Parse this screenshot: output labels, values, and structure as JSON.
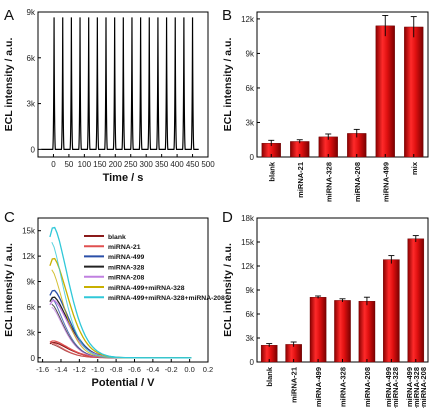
{
  "chart_data": [
    {
      "panel_label": "A",
      "type": "line",
      "xlabel": "Time / s",
      "ylabel": "ECL intensity / a.u.",
      "xlim": [
        -50,
        500
      ],
      "ylim": [
        -500,
        9000
      ],
      "x_ticks": [
        "0",
        "50",
        "100",
        "150",
        "200",
        "250",
        "300",
        "350",
        "400",
        "450",
        "500"
      ],
      "y_ticks": [
        "0",
        "3k",
        "6k",
        "9k"
      ],
      "series": [
        {
          "peak_times": [
            2,
            30,
            58,
            86,
            114,
            142,
            170,
            198,
            226,
            254,
            282,
            310,
            338,
            366,
            394,
            422,
            450
          ],
          "peak_values": [
            8650,
            8650,
            8650,
            8650,
            8650,
            8650,
            8650,
            8650,
            8650,
            8650,
            8650,
            8650,
            8650,
            8650,
            8650,
            8650,
            8650
          ],
          "baseline": 0,
          "color": "#000000"
        }
      ],
      "grid": false
    },
    {
      "panel_label": "B",
      "type": "bar",
      "ylabel": "ECL intensity / a.u.",
      "categories": [
        "blank",
        "miRNA-21",
        "miRNA-328",
        "miRNA-208",
        "miRNA-499",
        "mix"
      ],
      "values": [
        1200,
        1350,
        1750,
        2050,
        11400,
        11300
      ],
      "errors": [
        250,
        150,
        250,
        350,
        900,
        900
      ],
      "ylim": [
        0,
        12600
      ],
      "y_ticks": [
        "0",
        "3k",
        "6k",
        "9k",
        "12k"
      ],
      "bar_color": "#d81414",
      "grid": false
    },
    {
      "panel_label": "C",
      "type": "line",
      "xlabel": "Potential / V",
      "ylabel": "ECL intensity / a.u.",
      "xlim": [
        -1.65,
        0.2
      ],
      "ylim": [
        -500,
        16500
      ],
      "x_ticks": [
        "-1.6",
        "-1.4",
        "-1.2",
        "-1.0",
        "-0.8",
        "-0.6",
        "-0.4",
        "-0.2",
        "0.0",
        "0.2"
      ],
      "y_ticks": [
        "0",
        "3k",
        "6k",
        "9k",
        "12k",
        "15k"
      ],
      "legend_position": "top-right",
      "series": [
        {
          "name": "blank",
          "color": "#8b1a1a",
          "peak": 1800
        },
        {
          "name": "miRNA-21",
          "color": "#e05050",
          "peak": 2000
        },
        {
          "name": "miRNA-499",
          "color": "#2a4fa8",
          "peak": 8000
        },
        {
          "name": "miRNA-328",
          "color": "#222222",
          "peak": 7200
        },
        {
          "name": "miRNA-208",
          "color": "#c080e0",
          "peak": 6800
        },
        {
          "name": "miRNA-499+miRNA-328",
          "color": "#c8b000",
          "peak": 11800
        },
        {
          "name": "miRNA-499+miRNA-328+miRNA-208",
          "color": "#30c8d8",
          "peak": 15500
        }
      ],
      "grid": false
    },
    {
      "panel_label": "D",
      "type": "bar",
      "ylabel": "ECL intensity / a.u.",
      "categories": [
        "blank",
        "miRNA-21",
        "miRNA-499",
        "miRNA-328",
        "miRNA-208",
        "miRNA-499\n+miRNA-328",
        "miRNA-499\n+miRNA-328\n+miRNA-208"
      ],
      "values": [
        2100,
        2200,
        8100,
        7700,
        7600,
        12800,
        15400
      ],
      "errors": [
        200,
        300,
        150,
        200,
        500,
        500,
        400
      ],
      "ylim": [
        0,
        18000
      ],
      "y_ticks": [
        "0",
        "3k",
        "6k",
        "9k",
        "12k",
        "15k",
        "18k"
      ],
      "bar_color": "#d81414",
      "grid": false
    }
  ]
}
